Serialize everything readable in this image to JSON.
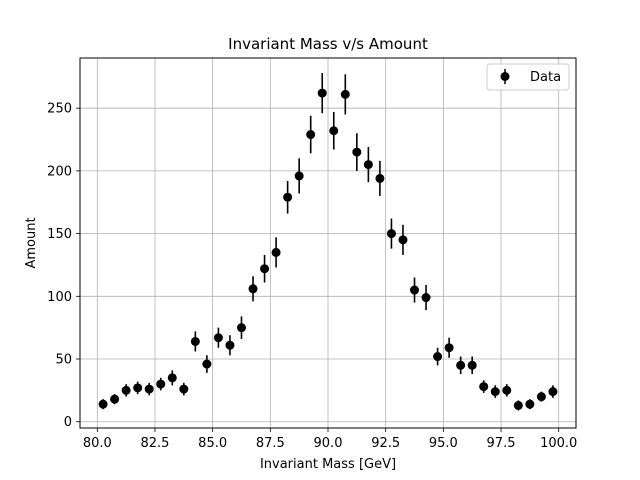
{
  "chart_data": {
    "type": "scatter",
    "title": "Invariant Mass v/s Amount",
    "xlabel": "Invariant Mass [GeV]",
    "ylabel": "Amount",
    "xlim": [
      79.25,
      100.75
    ],
    "ylim": [
      -5,
      290
    ],
    "xticks": [
      80.0,
      82.5,
      85.0,
      87.5,
      90.0,
      92.5,
      95.0,
      97.5,
      100.0
    ],
    "xtick_labels": [
      "80.0",
      "82.5",
      "85.0",
      "87.5",
      "90.0",
      "92.5",
      "95.0",
      "97.5",
      "100.0"
    ],
    "yticks": [
      0,
      50,
      100,
      150,
      200,
      250
    ],
    "ytick_labels": [
      "0",
      "50",
      "100",
      "150",
      "200",
      "250"
    ],
    "grid": true,
    "legend": {
      "position": "top-right",
      "entries": [
        "Data"
      ]
    },
    "series": [
      {
        "name": "Data",
        "marker": "circle",
        "color": "#000000",
        "x": [
          80.25,
          80.75,
          81.25,
          81.75,
          82.25,
          82.75,
          83.25,
          83.75,
          84.25,
          84.75,
          85.25,
          85.75,
          86.25,
          86.75,
          87.25,
          87.75,
          88.25,
          88.75,
          89.25,
          89.75,
          90.25,
          90.75,
          91.25,
          91.75,
          92.25,
          92.75,
          93.25,
          93.75,
          94.25,
          94.75,
          95.25,
          95.75,
          96.25,
          96.75,
          97.25,
          97.75,
          98.25,
          98.75,
          99.25,
          99.75
        ],
        "y": [
          14,
          18,
          25,
          27,
          26,
          30,
          35,
          26,
          64,
          46,
          67,
          61,
          75,
          106,
          122,
          135,
          179,
          196,
          229,
          262,
          232,
          261,
          215,
          205,
          194,
          150,
          145,
          105,
          99,
          52,
          59,
          45,
          45,
          28,
          24,
          25,
          13,
          14,
          20,
          24
        ],
        "yerr": [
          4,
          4,
          5,
          5,
          5,
          5,
          6,
          5,
          8,
          7,
          8,
          8,
          9,
          10,
          11,
          12,
          13,
          14,
          15,
          16,
          15,
          16,
          15,
          14,
          14,
          12,
          12,
          10,
          10,
          7,
          8,
          7,
          7,
          5,
          5,
          5,
          4,
          4,
          4,
          5
        ]
      }
    ]
  }
}
